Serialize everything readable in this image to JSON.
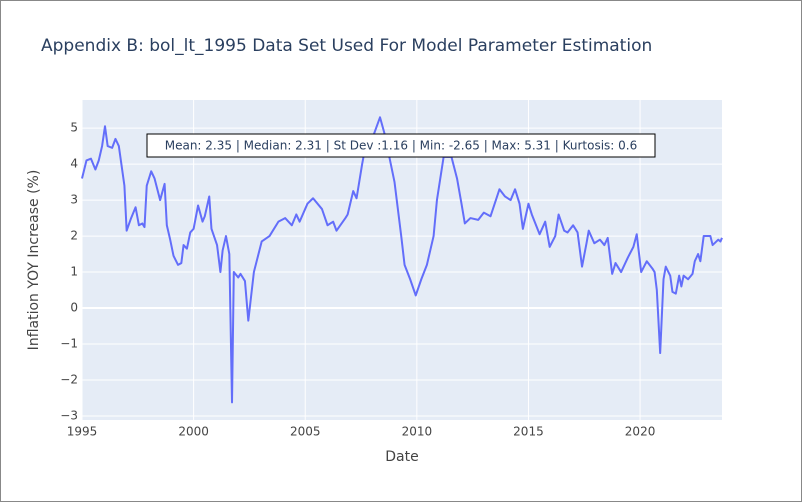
{
  "chart_data": {
    "type": "line",
    "title": "Appendix B: bol_lt_1995 Data Set Used For Model Parameter Estimation",
    "x_label": "Date",
    "y_label": "Inflation YOY Increase (%)",
    "annotation": "Mean: 2.35 | Median: 2.31 | St Dev :1.16 | Min: -2.65 | Max: 5.31 | Kurtosis: 0.6",
    "x": [
      1995.0,
      1995.2,
      1995.4,
      1995.6,
      1995.75,
      1995.9,
      1996.03,
      1996.15,
      1996.35,
      1996.5,
      1996.65,
      1996.9,
      1997.0,
      1997.2,
      1997.4,
      1997.55,
      1997.7,
      1997.8,
      1997.9,
      1998.1,
      1998.25,
      1998.5,
      1998.7,
      1998.8,
      1998.95,
      1999.1,
      1999.3,
      1999.45,
      1999.55,
      1999.7,
      1999.85,
      2000.0,
      2000.2,
      2000.4,
      2000.5,
      2000.7,
      2000.8,
      2001.05,
      2001.2,
      2001.3,
      2001.45,
      2001.6,
      2001.72,
      2001.8,
      2002.0,
      2002.1,
      2002.3,
      2002.45,
      2002.7,
      2003.05,
      2003.4,
      2003.8,
      2004.1,
      2004.4,
      2004.6,
      2004.75,
      2005.1,
      2005.35,
      2005.75,
      2006.0,
      2006.25,
      2006.4,
      2006.8,
      2006.9,
      2007.15,
      2007.3,
      2007.55,
      2007.7,
      2008.0,
      2008.35,
      2008.55,
      2009.0,
      2009.3,
      2009.45,
      2009.7,
      2009.95,
      2010.2,
      2010.45,
      2010.75,
      2010.9,
      2011.2,
      2011.55,
      2011.8,
      2012.0,
      2012.15,
      2012.4,
      2012.75,
      2013.0,
      2013.3,
      2013.7,
      2013.95,
      2014.2,
      2014.4,
      2014.6,
      2014.75,
      2015.0,
      2015.15,
      2015.5,
      2015.75,
      2015.95,
      2016.2,
      2016.35,
      2016.6,
      2016.75,
      2017.0,
      2017.2,
      2017.4,
      2017.6,
      2017.7,
      2017.95,
      2018.2,
      2018.4,
      2018.55,
      2018.75,
      2018.9,
      2019.15,
      2019.45,
      2019.7,
      2019.85,
      2020.05,
      2020.3,
      2020.55,
      2020.65,
      2020.75,
      2020.9,
      2021.05,
      2021.15,
      2021.35,
      2021.45,
      2021.6,
      2021.75,
      2021.85,
      2021.95,
      2022.15,
      2022.35,
      2022.45,
      2022.6,
      2022.7,
      2022.85,
      2023.15,
      2023.25,
      2023.5,
      2023.6,
      2023.67
    ],
    "series": [
      {
        "name": "bol_lt_1995",
        "color": "#636efa",
        "values": [
          3.6,
          4.1,
          4.15,
          3.85,
          4.1,
          4.5,
          5.05,
          4.5,
          4.45,
          4.7,
          4.5,
          3.4,
          2.15,
          2.5,
          2.8,
          2.3,
          2.35,
          2.25,
          3.4,
          3.8,
          3.6,
          3.0,
          3.45,
          2.3,
          1.9,
          1.45,
          1.2,
          1.25,
          1.75,
          1.65,
          2.1,
          2.2,
          2.85,
          2.4,
          2.55,
          3.1,
          2.2,
          1.75,
          1.0,
          1.6,
          2.0,
          1.5,
          -2.62,
          1.0,
          0.85,
          0.95,
          0.75,
          -0.35,
          1.0,
          1.85,
          2.0,
          2.4,
          2.5,
          2.3,
          2.6,
          2.4,
          2.9,
          3.05,
          2.75,
          2.3,
          2.4,
          2.15,
          2.5,
          2.6,
          3.25,
          3.05,
          4.0,
          4.5,
          4.7,
          5.3,
          4.85,
          3.5,
          2.0,
          1.2,
          0.8,
          0.35,
          0.8,
          1.2,
          2.0,
          3.0,
          4.2,
          4.2,
          3.6,
          2.9,
          2.35,
          2.5,
          2.45,
          2.65,
          2.55,
          3.3,
          3.1,
          3.0,
          3.3,
          2.9,
          2.2,
          2.9,
          2.6,
          2.05,
          2.4,
          1.7,
          2.0,
          2.6,
          2.15,
          2.1,
          2.3,
          2.1,
          1.15,
          1.8,
          2.15,
          1.8,
          1.9,
          1.75,
          1.95,
          0.95,
          1.25,
          1.0,
          1.4,
          1.7,
          2.05,
          1.0,
          1.3,
          1.1,
          1.0,
          0.5,
          -1.25,
          0.8,
          1.15,
          0.9,
          0.45,
          0.4,
          0.9,
          0.6,
          0.9,
          0.8,
          0.95,
          1.3,
          1.5,
          1.3,
          2.0,
          2.0,
          1.75,
          1.9,
          1.85,
          1.95
        ]
      }
    ],
    "xlim": [
      1995,
      2023.67
    ],
    "xticks": [
      1995,
      2000,
      2005,
      2010,
      2015,
      2020
    ],
    "ylim": [
      -3.11,
      5.78
    ],
    "yticks": [
      {
        "value": -3,
        "label": "−3"
      },
      {
        "value": -2,
        "label": "−2"
      },
      {
        "value": -1,
        "label": "−1"
      },
      0,
      1,
      2,
      3,
      4,
      5
    ],
    "grid": true
  }
}
